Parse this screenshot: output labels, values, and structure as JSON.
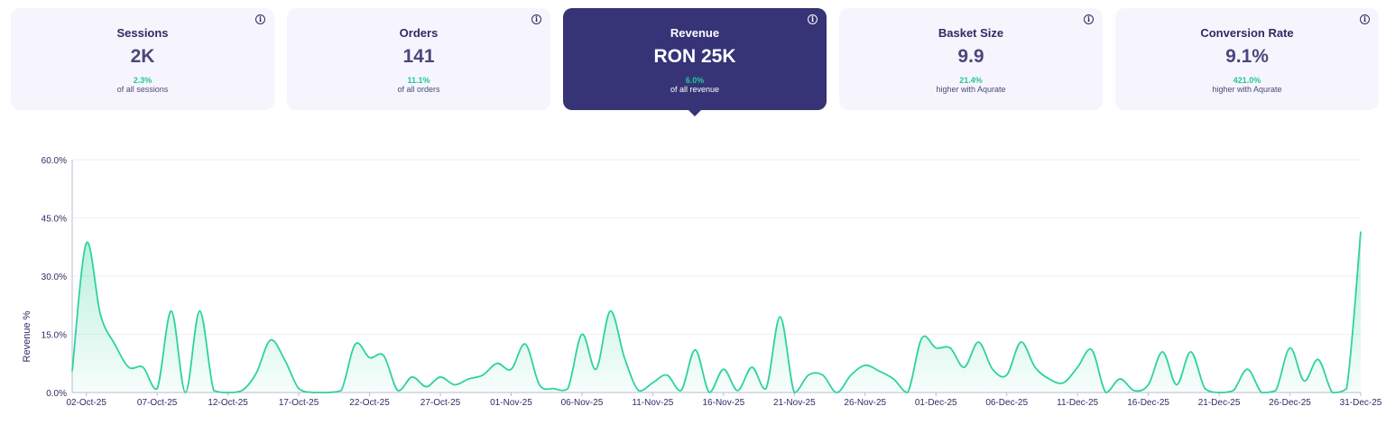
{
  "cards": [
    {
      "title": "Sessions",
      "value": "2K",
      "pct": "2.3%",
      "sub": "of all sessions",
      "active": false
    },
    {
      "title": "Orders",
      "value": "141",
      "pct": "11.1%",
      "sub": "of all orders",
      "active": false
    },
    {
      "title": "Revenue",
      "value": "RON 25K",
      "pct": "6.0%",
      "sub": "of all revenue",
      "active": true
    },
    {
      "title": "Basket Size",
      "value": "9.9",
      "pct": "21.4%",
      "sub": "higher with Aqurate",
      "active": false
    },
    {
      "title": "Conversion Rate",
      "value": "9.1%",
      "pct": "421.0%",
      "sub": "higher with Aqurate",
      "active": false
    }
  ],
  "info_icon": "info-icon",
  "colors": {
    "active_card": "#363377",
    "card": "#f6f5fd",
    "line": "#2fd39b",
    "accent_text": "#22c997"
  },
  "chart_data": {
    "type": "area",
    "ylabel": "Revenue %",
    "ylim": [
      0,
      60
    ],
    "yticks": [
      "0.0%",
      "15.0%",
      "30.0%",
      "45.0%",
      "60.0%"
    ],
    "xticks": [
      "02-Oct-25",
      "07-Oct-25",
      "12-Oct-25",
      "17-Oct-25",
      "22-Oct-25",
      "27-Oct-25",
      "01-Nov-25",
      "06-Nov-25",
      "11-Nov-25",
      "16-Nov-25",
      "21-Nov-25",
      "26-Nov-25",
      "01-Dec-25",
      "06-Dec-25",
      "11-Dec-25",
      "16-Dec-25",
      "21-Dec-25",
      "26-Dec-25",
      "31-Dec-25"
    ],
    "x": [
      "01-Oct-25",
      "02-Oct-25",
      "03-Oct-25",
      "04-Oct-25",
      "05-Oct-25",
      "06-Oct-25",
      "07-Oct-25",
      "08-Oct-25",
      "09-Oct-25",
      "10-Oct-25",
      "11-Oct-25",
      "12-Oct-25",
      "13-Oct-25",
      "14-Oct-25",
      "15-Oct-25",
      "16-Oct-25",
      "17-Oct-25",
      "18-Oct-25",
      "19-Oct-25",
      "20-Oct-25",
      "21-Oct-25",
      "22-Oct-25",
      "23-Oct-25",
      "24-Oct-25",
      "25-Oct-25",
      "26-Oct-25",
      "27-Oct-25",
      "28-Oct-25",
      "29-Oct-25",
      "30-Oct-25",
      "31-Oct-25",
      "01-Nov-25",
      "02-Nov-25",
      "03-Nov-25",
      "04-Nov-25",
      "05-Nov-25",
      "06-Nov-25",
      "07-Nov-25",
      "08-Nov-25",
      "09-Nov-25",
      "10-Nov-25",
      "11-Nov-25",
      "12-Nov-25",
      "13-Nov-25",
      "14-Nov-25",
      "15-Nov-25",
      "16-Nov-25",
      "17-Nov-25",
      "18-Nov-25",
      "19-Nov-25",
      "20-Nov-25",
      "21-Nov-25",
      "22-Nov-25",
      "23-Nov-25",
      "24-Nov-25",
      "25-Nov-25",
      "26-Nov-25",
      "27-Nov-25",
      "28-Nov-25",
      "29-Nov-25",
      "30-Nov-25",
      "01-Dec-25",
      "02-Dec-25",
      "03-Dec-25",
      "04-Dec-25",
      "05-Dec-25",
      "06-Dec-25",
      "07-Dec-25",
      "08-Dec-25",
      "09-Dec-25",
      "10-Dec-25",
      "11-Dec-25",
      "12-Dec-25",
      "13-Dec-25",
      "14-Dec-25",
      "15-Dec-25",
      "16-Dec-25",
      "17-Dec-25",
      "18-Dec-25",
      "19-Dec-25",
      "20-Dec-25",
      "21-Dec-25",
      "22-Dec-25",
      "23-Dec-25",
      "24-Dec-25",
      "25-Dec-25",
      "26-Dec-25",
      "27-Dec-25",
      "28-Dec-25",
      "29-Dec-25",
      "30-Dec-25",
      "31-Dec-25"
    ],
    "series": [
      {
        "values": [
          5.5,
          38.5,
          20,
          12.5,
          6.5,
          6.5,
          1,
          21,
          0,
          21,
          0.5,
          0,
          0.5,
          5,
          13.5,
          8.5,
          1,
          0,
          0,
          0.5,
          12.5,
          9,
          9.5,
          0.5,
          4,
          1.5,
          4,
          2,
          3.5,
          4.5,
          7.5,
          6,
          12.5,
          2,
          1,
          1,
          15,
          6,
          21,
          9,
          0.5,
          2.5,
          4.5,
          0.5,
          11,
          0,
          6,
          0.5,
          6.5,
          1,
          19.5,
          0,
          4.5,
          4.5,
          0,
          4.5,
          7,
          5.5,
          3.5,
          0,
          14,
          11.5,
          11.5,
          6.5,
          13,
          6,
          4.5,
          13,
          6.5,
          3.5,
          2.5,
          6.5,
          11,
          0,
          3.5,
          0.5,
          2,
          10.5,
          2,
          10.5,
          1,
          0,
          0.5,
          6,
          0,
          0.5,
          11.5,
          3,
          8.5,
          0,
          1,
          41.5
        ]
      }
    ]
  }
}
